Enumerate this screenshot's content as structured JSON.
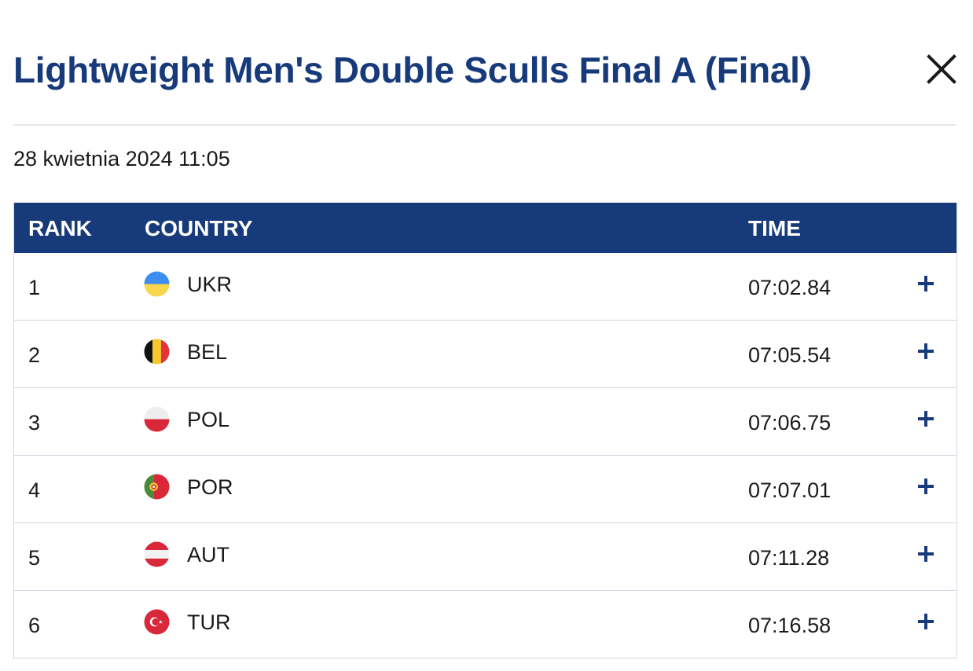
{
  "modal": {
    "title": "Lightweight Men's Double Sculls Final A (Final)",
    "date": "28 kwietnia 2024 11:05",
    "close_icon": "close-icon"
  },
  "table": {
    "headers": {
      "rank": "RANK",
      "country": "COUNTRY",
      "time": "TIME"
    },
    "rows": [
      {
        "rank": "1",
        "country": "UKR",
        "time": "07:02.84",
        "flag": "ukraine-flag-icon"
      },
      {
        "rank": "2",
        "country": "BEL",
        "time": "07:05.54",
        "flag": "belgium-flag-icon"
      },
      {
        "rank": "3",
        "country": "POL",
        "time": "07:06.75",
        "flag": "poland-flag-icon"
      },
      {
        "rank": "4",
        "country": "POR",
        "time": "07:07.01",
        "flag": "portugal-flag-icon"
      },
      {
        "rank": "5",
        "country": "AUT",
        "time": "07:11.28",
        "flag": "austria-flag-icon"
      },
      {
        "rank": "6",
        "country": "TUR",
        "time": "07:16.58",
        "flag": "turkey-flag-icon"
      }
    ],
    "expand_icon": "plus-icon"
  },
  "colors": {
    "brand": "#173a7a",
    "header_text": "#ffffff",
    "row_border": "#cfd6e0",
    "divider": "#e6e8ec"
  }
}
